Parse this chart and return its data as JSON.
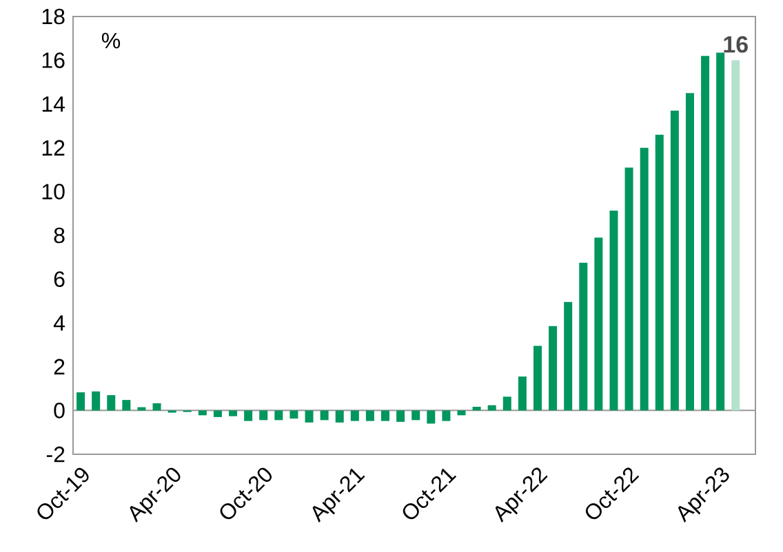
{
  "chart_data": {
    "type": "bar",
    "categories": [
      "Oct-19",
      null,
      null,
      null,
      null,
      null,
      "Apr-20",
      null,
      null,
      null,
      null,
      null,
      "Oct-20",
      null,
      null,
      null,
      null,
      null,
      "Apr-21",
      null,
      null,
      null,
      null,
      null,
      "Oct-21",
      null,
      null,
      null,
      null,
      null,
      "Apr-22",
      null,
      null,
      null,
      null,
      null,
      "Oct-22",
      null,
      null,
      null,
      null,
      null,
      "Apr-23",
      null
    ],
    "values": [
      0.83,
      0.87,
      0.7,
      0.48,
      0.15,
      0.33,
      -0.1,
      -0.07,
      -0.22,
      -0.3,
      -0.26,
      -0.48,
      -0.44,
      -0.44,
      -0.37,
      -0.55,
      -0.44,
      -0.55,
      -0.48,
      -0.48,
      -0.48,
      -0.52,
      -0.44,
      -0.6,
      -0.48,
      -0.22,
      0.17,
      0.24,
      0.63,
      1.55,
      2.95,
      3.86,
      4.96,
      6.75,
      7.9,
      9.13,
      11.1,
      12.0,
      12.6,
      13.7,
      14.5,
      16.2,
      16.35,
      16
    ],
    "colors": [
      "#00965e",
      "#00965e",
      "#00965e",
      "#00965e",
      "#00965e",
      "#00965e",
      "#00965e",
      "#00965e",
      "#00965e",
      "#00965e",
      "#00965e",
      "#00965e",
      "#00965e",
      "#00965e",
      "#00965e",
      "#00965e",
      "#00965e",
      "#00965e",
      "#00965e",
      "#00965e",
      "#00965e",
      "#00965e",
      "#00965e",
      "#00965e",
      "#00965e",
      "#00965e",
      "#00965e",
      "#00965e",
      "#00965e",
      "#00965e",
      "#00965e",
      "#00965e",
      "#00965e",
      "#00965e",
      "#00965e",
      "#00965e",
      "#00965e",
      "#00965e",
      "#00965e",
      "#00965e",
      "#00965e",
      "#00965e",
      "#00965e",
      "#b5e2cc"
    ],
    "value_labels": [
      null,
      null,
      null,
      null,
      null,
      null,
      null,
      null,
      null,
      null,
      null,
      null,
      null,
      null,
      null,
      null,
      null,
      null,
      null,
      null,
      null,
      null,
      null,
      null,
      null,
      null,
      null,
      null,
      null,
      null,
      null,
      null,
      null,
      null,
      null,
      null,
      null,
      null,
      null,
      null,
      null,
      null,
      null,
      "16"
    ],
    "ylim": [
      -2,
      18
    ],
    "yticks": [
      -2,
      0,
      2,
      4,
      6,
      8,
      10,
      12,
      14,
      16,
      18
    ],
    "annotations": [
      "%"
    ]
  }
}
